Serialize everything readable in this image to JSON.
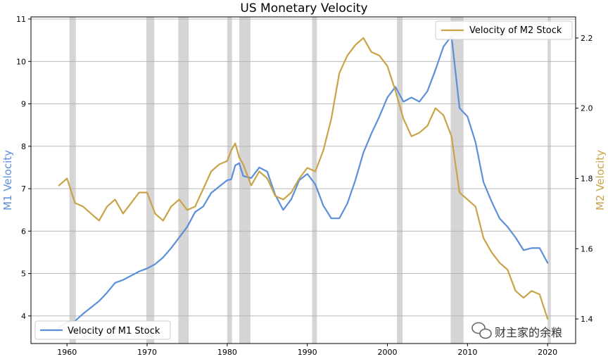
{
  "chart_data": {
    "type": "line",
    "title": "US Monetary Velocity",
    "ylabel_left": "M1 Velocity",
    "ylabel_right": "M2 Velocity",
    "xlim": [
      1955.5,
      2023.5
    ],
    "ylim_left": [
      3.35,
      11.05
    ],
    "ylim_right": [
      1.33,
      2.26
    ],
    "x_ticks": [
      1960,
      1970,
      1980,
      1990,
      2000,
      2010,
      2020
    ],
    "y_left_ticks": [
      4,
      5,
      6,
      7,
      8,
      9,
      10,
      11
    ],
    "y_right_ticks": [
      1.4,
      1.6,
      1.8,
      2.0,
      2.2
    ],
    "y_right_tick_labels": [
      "1.4",
      "1.6",
      "1.8",
      "2.0",
      "2.2"
    ],
    "grid": "horizontal",
    "colors": {
      "m1": "#5b8fd9",
      "m2": "#c9a447",
      "recession": "#d3d3d3"
    },
    "recessions": [
      [
        1960.3,
        1961.1
      ],
      [
        1969.9,
        1970.9
      ],
      [
        1973.9,
        1975.2
      ],
      [
        1980.0,
        1980.6
      ],
      [
        1981.5,
        1982.9
      ],
      [
        1990.6,
        1991.2
      ],
      [
        2001.2,
        2001.9
      ],
      [
        2007.9,
        2009.5
      ],
      [
        2020.0,
        2020.4
      ]
    ],
    "series": [
      {
        "name": "Velocity of M1 Stock",
        "axis": "left",
        "legend_position": "lower-left",
        "x": [
          1959,
          1960,
          1961,
          1962,
          1963,
          1964,
          1965,
          1966,
          1967,
          1968,
          1969,
          1970,
          1971,
          1972,
          1973,
          1974,
          1975,
          1976,
          1977,
          1978,
          1979,
          1980,
          1980.5,
          1981,
          1981.5,
          1982,
          1983,
          1984,
          1985,
          1986,
          1987,
          1988,
          1989,
          1990,
          1991,
          1992,
          1993,
          1994,
          1995,
          1996,
          1997,
          1998,
          1999,
          2000,
          2001,
          2002,
          2003,
          2004,
          2005,
          2006,
          2007,
          2008,
          2009,
          2010,
          2011,
          2012,
          2013,
          2014,
          2015,
          2016,
          2017,
          2018,
          2019,
          2020
        ],
        "values": [
          3.72,
          3.85,
          3.88,
          4.05,
          4.2,
          4.35,
          4.55,
          4.78,
          4.85,
          4.95,
          5.05,
          5.12,
          5.22,
          5.38,
          5.6,
          5.85,
          6.1,
          6.45,
          6.58,
          6.9,
          7.05,
          7.2,
          7.22,
          7.55,
          7.6,
          7.3,
          7.25,
          7.5,
          7.4,
          6.85,
          6.5,
          6.75,
          7.2,
          7.35,
          7.1,
          6.6,
          6.3,
          6.3,
          6.65,
          7.2,
          7.85,
          8.3,
          8.7,
          9.15,
          9.4,
          9.05,
          9.15,
          9.05,
          9.3,
          9.8,
          10.35,
          10.6,
          8.9,
          8.7,
          8.1,
          7.15,
          6.7,
          6.3,
          6.1,
          5.85,
          5.55,
          5.6,
          5.6,
          5.25
        ]
      },
      {
        "name": "Velocity of M2 Stock",
        "axis": "right",
        "legend_position": "upper-right",
        "x": [
          1959,
          1960,
          1961,
          1962,
          1963,
          1964,
          1965,
          1966,
          1967,
          1968,
          1969,
          1970,
          1971,
          1972,
          1973,
          1974,
          1975,
          1976,
          1977,
          1978,
          1979,
          1980,
          1980.5,
          1981,
          1981.5,
          1982,
          1983,
          1984,
          1985,
          1986,
          1987,
          1988,
          1989,
          1990,
          1991,
          1992,
          1993,
          1994,
          1995,
          1996,
          1997,
          1998,
          1999,
          2000,
          2001,
          2002,
          2003,
          2004,
          2005,
          2006,
          2007,
          2008,
          2009,
          2010,
          2011,
          2012,
          2013,
          2014,
          2015,
          2016,
          2017,
          2018,
          2019,
          2020
        ],
        "values": [
          1.78,
          1.8,
          1.73,
          1.72,
          1.7,
          1.68,
          1.72,
          1.74,
          1.7,
          1.73,
          1.76,
          1.76,
          1.7,
          1.68,
          1.72,
          1.74,
          1.71,
          1.72,
          1.77,
          1.82,
          1.84,
          1.85,
          1.88,
          1.9,
          1.86,
          1.84,
          1.78,
          1.82,
          1.8,
          1.75,
          1.74,
          1.76,
          1.8,
          1.83,
          1.82,
          1.88,
          1.97,
          2.1,
          2.15,
          2.18,
          2.2,
          2.16,
          2.15,
          2.12,
          2.05,
          1.97,
          1.92,
          1.93,
          1.95,
          2.0,
          1.98,
          1.92,
          1.76,
          1.74,
          1.72,
          1.63,
          1.59,
          1.56,
          1.54,
          1.48,
          1.46,
          1.48,
          1.47,
          1.4
        ]
      }
    ]
  },
  "watermark": {
    "text": "财主家的余粮",
    "icon": "wechat-icon"
  }
}
